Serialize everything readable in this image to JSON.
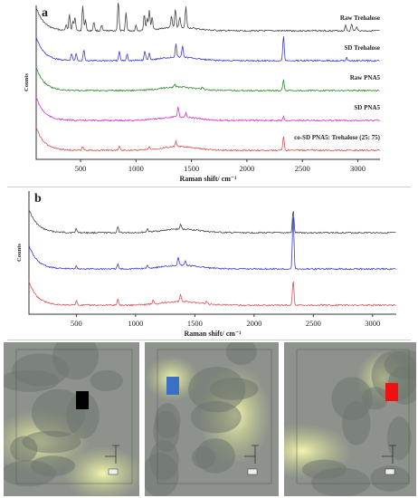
{
  "chart_data": [
    {
      "type": "line",
      "panel_label": "a",
      "xlabel": "Raman shift/ cm⁻¹",
      "ylabel": "Counts",
      "xlim": [
        100,
        3200
      ],
      "xticks": [
        500,
        1000,
        1500,
        2000,
        2500,
        3000
      ],
      "series": [
        {
          "name": "Raw Trehalose",
          "color": "#444444",
          "offset": 4,
          "peaks": [
            [
              370,
              0.12
            ],
            [
              400,
              0.35
            ],
            [
              430,
              0.22
            ],
            [
              450,
              0.3
            ],
            [
              520,
              0.55
            ],
            [
              545,
              0.25
            ],
            [
              620,
              0.2
            ],
            [
              690,
              0.12
            ],
            [
              840,
              0.65
            ],
            [
              910,
              0.4
            ],
            [
              1000,
              0.12
            ],
            [
              1075,
              0.35
            ],
            [
              1100,
              0.25
            ],
            [
              1120,
              0.42
            ],
            [
              1145,
              0.28
            ],
            [
              1320,
              0.25
            ],
            [
              1355,
              0.4
            ],
            [
              1395,
              0.22
            ],
            [
              1450,
              0.45
            ],
            [
              2890,
              0.12
            ],
            [
              2945,
              0.15
            ],
            [
              2990,
              0.1
            ]
          ]
        },
        {
          "name": "SD Trehalose",
          "color": "#3b3bd6",
          "offset": 3,
          "peaks": [
            [
              420,
              0.15
            ],
            [
              460,
              0.15
            ],
            [
              530,
              0.25
            ],
            [
              850,
              0.2
            ],
            [
              920,
              0.15
            ],
            [
              1080,
              0.2
            ],
            [
              1120,
              0.15
            ],
            [
              1360,
              0.3
            ],
            [
              1420,
              0.25
            ],
            [
              2330,
              0.55
            ],
            [
              2900,
              0.06
            ]
          ]
        },
        {
          "name": "Raw PNA5",
          "color": "#2e8b2e",
          "offset": 2,
          "peaks": [
            [
              1350,
              0.06
            ],
            [
              1600,
              0.05
            ],
            [
              2330,
              0.25
            ]
          ]
        },
        {
          "name": "SD PNA5",
          "color": "#d633d6",
          "offset": 1,
          "peaks": [
            [
              1380,
              0.22
            ],
            [
              1450,
              0.1
            ],
            [
              2330,
              0.1
            ]
          ]
        },
        {
          "name": "co-SD PNA5: Trehalose (25: 75)",
          "color": "#e05050",
          "offset": 0,
          "peaks": [
            [
              520,
              0.08
            ],
            [
              850,
              0.1
            ],
            [
              1120,
              0.06
            ],
            [
              1360,
              0.12
            ],
            [
              2330,
              0.3
            ]
          ]
        }
      ]
    },
    {
      "type": "line",
      "panel_label": "b",
      "xlabel": "Raman shift/ cm⁻¹",
      "ylabel": "Counts",
      "xlim": [
        100,
        3200
      ],
      "xticks": [
        500,
        1000,
        1500,
        2000,
        2500,
        3000
      ],
      "series": [
        {
          "color": "#444444",
          "offset": 2,
          "peaks": [
            [
              500,
              0.08
            ],
            [
              850,
              0.1
            ],
            [
              1100,
              0.06
            ],
            [
              1380,
              0.08
            ],
            [
              2330,
              0.4
            ]
          ]
        },
        {
          "color": "#3b3bd6",
          "offset": 1,
          "peaks": [
            [
              500,
              0.06
            ],
            [
              850,
              0.08
            ],
            [
              1100,
              0.05
            ],
            [
              1360,
              0.15
            ],
            [
              1420,
              0.08
            ],
            [
              2330,
              0.95
            ]
          ]
        },
        {
          "color": "#e05050",
          "offset": 0,
          "peaks": [
            [
              500,
              0.08
            ],
            [
              850,
              0.1
            ],
            [
              1150,
              0.08
            ],
            [
              1380,
              0.12
            ],
            [
              1600,
              0.05
            ],
            [
              2330,
              0.45
            ]
          ]
        }
      ]
    }
  ],
  "micrographs": [
    {
      "marker_color": "#000000"
    },
    {
      "marker_color": "#3a6fc8"
    },
    {
      "marker_color": "#ee1111"
    }
  ]
}
